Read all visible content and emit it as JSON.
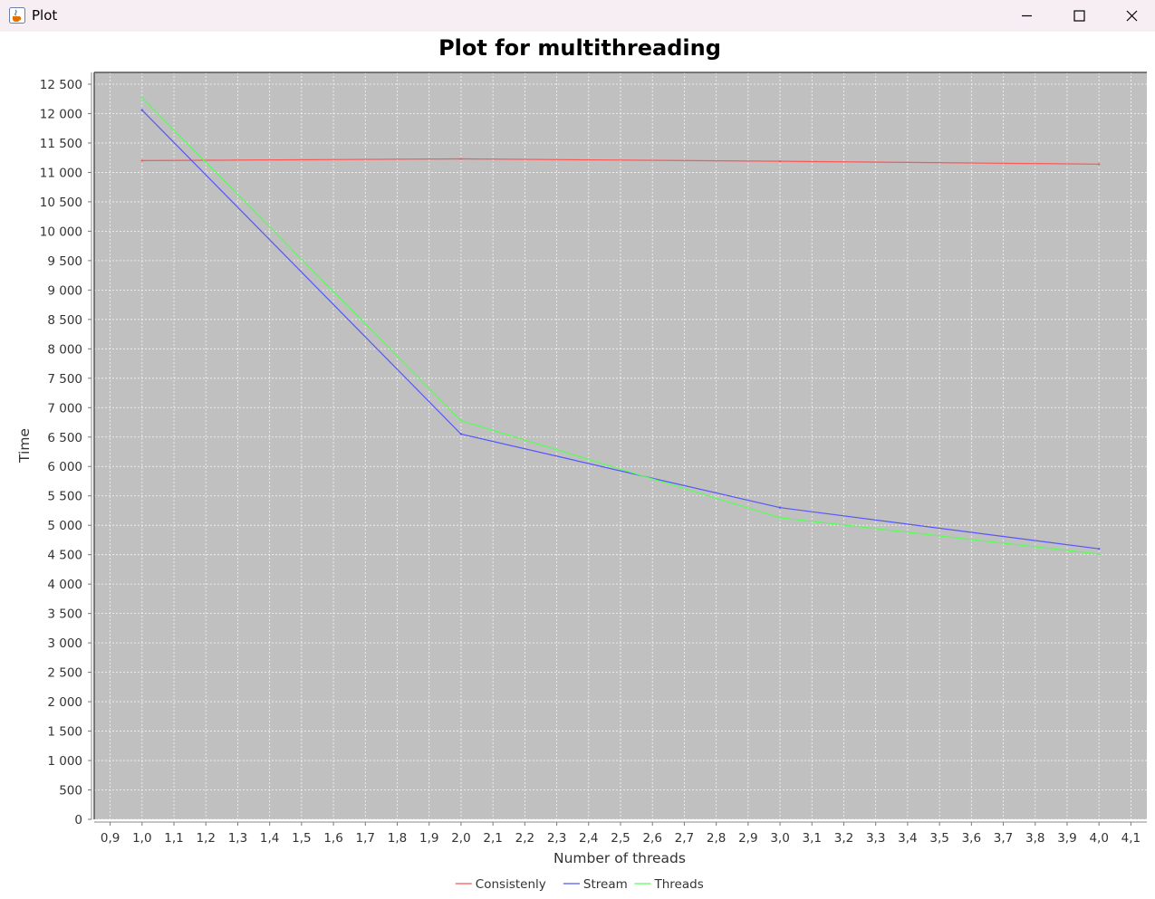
{
  "window": {
    "title": "Plot",
    "icons": {
      "app": "java-cup-icon",
      "minimize": "minimize-icon",
      "maximize": "maximize-icon",
      "close": "close-icon"
    }
  },
  "chart_data": {
    "type": "line",
    "title": "Plot for multithreading",
    "xlabel": "Number of threads",
    "ylabel": "Time",
    "xlim": [
      0.85,
      4.15
    ],
    "ylim": [
      0,
      12700
    ],
    "x_ticks": [
      "0,9",
      "1,0",
      "1,1",
      "1,2",
      "1,3",
      "1,4",
      "1,5",
      "1,6",
      "1,7",
      "1,8",
      "1,9",
      "2,0",
      "2,1",
      "2,2",
      "2,3",
      "2,4",
      "2,5",
      "2,6",
      "2,7",
      "2,8",
      "2,9",
      "3,0",
      "3,1",
      "3,2",
      "3,3",
      "3,4",
      "3,5",
      "3,6",
      "3,7",
      "3,8",
      "3,9",
      "4,0",
      "4,1"
    ],
    "y_ticks": [
      "0",
      "500",
      "1 000",
      "1 500",
      "2 000",
      "2 500",
      "3 000",
      "3 500",
      "4 000",
      "4 500",
      "5 000",
      "5 500",
      "6 000",
      "6 500",
      "7 000",
      "7 500",
      "8 000",
      "8 500",
      "9 000",
      "9 500",
      "10 000",
      "10 500",
      "11 000",
      "11 500",
      "12 000",
      "12 500"
    ],
    "grid": true,
    "legend_position": "bottom",
    "background": "#c0c0c0",
    "series": [
      {
        "name": "Consistenly",
        "color": "#ff5555",
        "x": [
          1,
          2,
          3,
          4
        ],
        "y": [
          11200,
          11230,
          11190,
          11140
        ]
      },
      {
        "name": "Stream",
        "color": "#5555ff",
        "x": [
          1,
          2,
          3,
          4
        ],
        "y": [
          12060,
          6550,
          5300,
          4600
        ]
      },
      {
        "name": "Threads",
        "color": "#55ff55",
        "x": [
          1,
          2,
          3,
          4
        ],
        "y": [
          12270,
          6780,
          5130,
          4510
        ]
      }
    ]
  }
}
